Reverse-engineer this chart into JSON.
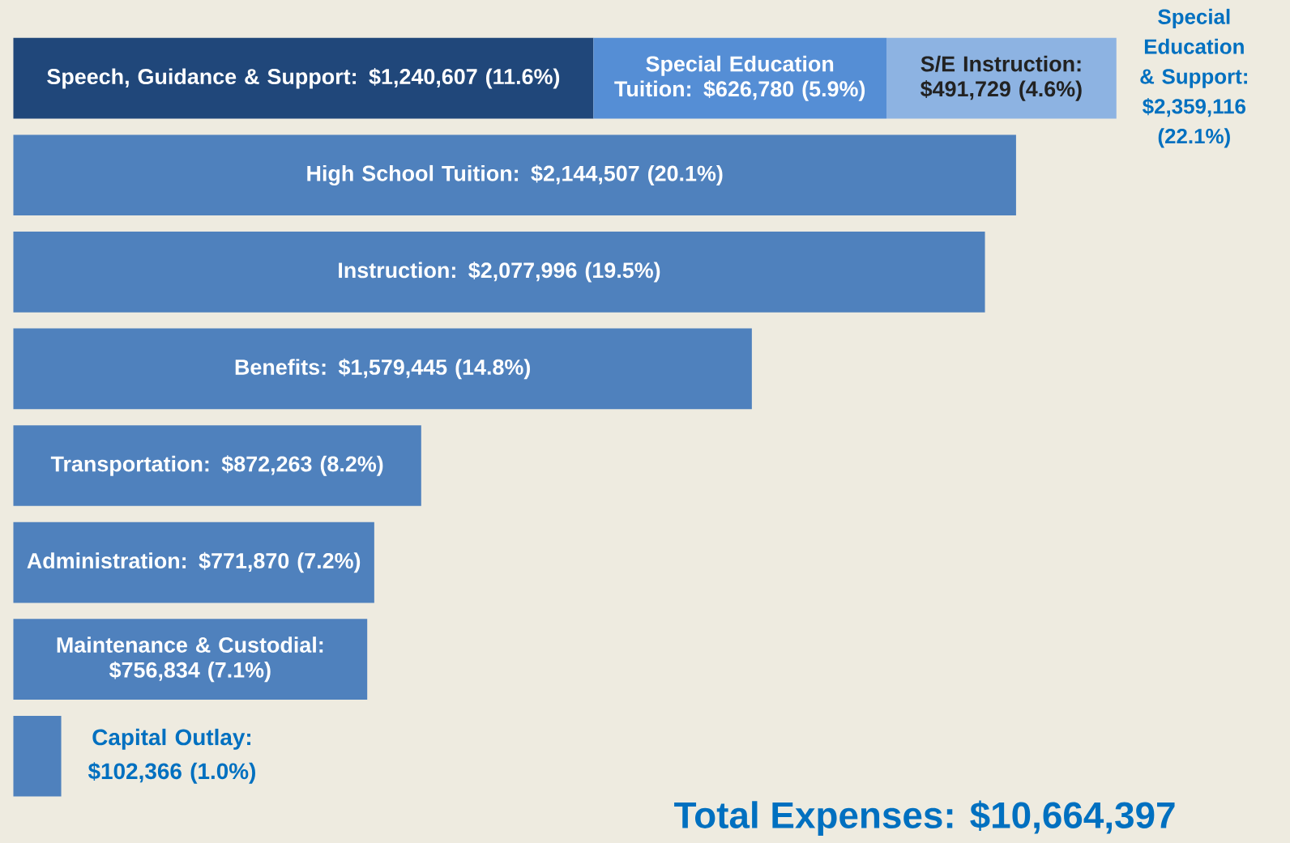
{
  "chart_data": {
    "type": "bar",
    "orientation": "horizontal",
    "stacked": true,
    "categories": [
      null,
      null,
      null,
      null,
      null,
      null,
      null,
      null
    ],
    "series": [
      {
        "colors": [
          "#20477a",
          "#4f81bd",
          "#4f81bd",
          "#4f81bd",
          "#4f81bd",
          "#4f81bd",
          "#4f81bd",
          "#4f81bd"
        ],
        "values": [
          1240607,
          2144507,
          2077996,
          1579445,
          872263,
          771870,
          756834,
          102366
        ],
        "value_labels": [
          "Speech, Guidance & Support: $1,240,607 (11.6%)",
          "High School Tuition: $2,144,507 (20.1%)",
          "Instruction: $2,077,996 (19.5%)",
          "Benefits: $1,579,445 (14.8%)",
          "Transportation: $872,263 (8.2%)",
          "Administration: $771,870 (7.2%)",
          "Maintenance & Custodial: $756,834 (7.1%)",
          "Capital Outlay: $102,366 (1.0%)"
        ]
      },
      {
        "color": "#558ed5",
        "values": [
          626780,
          null,
          null,
          null,
          null,
          null,
          null,
          null
        ],
        "value_labels": [
          "Special Education Tuition: $626,780 (5.9%)",
          null,
          null,
          null,
          null,
          null,
          null,
          null
        ]
      },
      {
        "color": "#8db3e2",
        "values": [
          491729,
          null,
          null,
          null,
          null,
          null,
          null,
          null
        ],
        "value_labels": [
          "S/E Instruction: $491,729 (4.6%)",
          null,
          null,
          null,
          null,
          null,
          null,
          null
        ]
      }
    ],
    "totals": [
      "Special Education & Support: $2,359,116 (22.1%)",
      null,
      null,
      null,
      null,
      null,
      null,
      null
    ],
    "annotations": [
      "Total Expenses: $10,664,397"
    ]
  }
}
